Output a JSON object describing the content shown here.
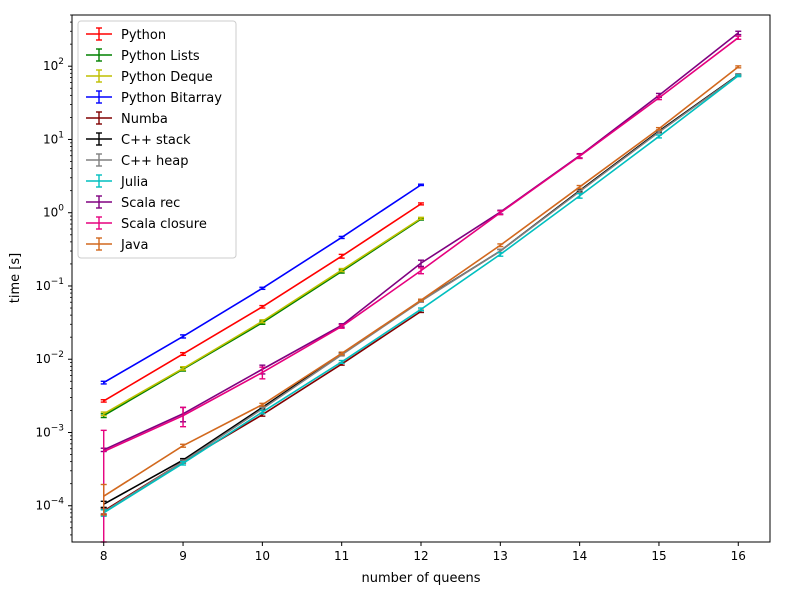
{
  "chart_data": {
    "type": "line",
    "title": "",
    "xlabel": "number of queens",
    "ylabel": "time [s]",
    "yscale": "log",
    "xlim": [
      7.6,
      16.4
    ],
    "ylim": [
      3.2e-05,
      500
    ],
    "x_ticks": [
      {
        "value": 8,
        "label": "8"
      },
      {
        "value": 9,
        "label": "9"
      },
      {
        "value": 10,
        "label": "10"
      },
      {
        "value": 11,
        "label": "11"
      },
      {
        "value": 12,
        "label": "12"
      },
      {
        "value": 13,
        "label": "13"
      },
      {
        "value": 14,
        "label": "14"
      },
      {
        "value": 15,
        "label": "15"
      },
      {
        "value": 16,
        "label": "16"
      }
    ],
    "y_ticks": [
      {
        "value": 0.0001,
        "base": "10",
        "exp": "−4"
      },
      {
        "value": 0.001,
        "base": "10",
        "exp": "−3"
      },
      {
        "value": 0.01,
        "base": "10",
        "exp": "−2"
      },
      {
        "value": 0.1,
        "base": "10",
        "exp": "−1"
      },
      {
        "value": 1,
        "base": "10",
        "exp": "0"
      },
      {
        "value": 10,
        "base": "10",
        "exp": "1"
      },
      {
        "value": 100,
        "base": "10",
        "exp": "2"
      }
    ],
    "grid": false,
    "legend_position": "top-left",
    "series": [
      {
        "name": "Python",
        "color": "#ff0000",
        "x": [
          8,
          9,
          10,
          11,
          12
        ],
        "y": [
          0.0027,
          0.0118,
          0.052,
          0.255,
          1.32
        ],
        "err": [
          0.0001,
          0.0005,
          0.002,
          0.015,
          0.04
        ]
      },
      {
        "name": "Python Lists",
        "color": "#008000",
        "x": [
          8,
          9,
          10,
          11,
          12
        ],
        "y": [
          0.0017,
          0.0073,
          0.0315,
          0.158,
          0.82
        ],
        "err": [
          0.0001,
          0.0004,
          0.0015,
          0.008,
          0.025
        ]
      },
      {
        "name": "Python Deque",
        "color": "#bfbf00",
        "x": [
          8,
          9,
          10,
          11,
          12
        ],
        "y": [
          0.0018,
          0.0075,
          0.033,
          0.165,
          0.84
        ],
        "err": [
          0.0001,
          0.0004,
          0.0015,
          0.008,
          0.025
        ]
      },
      {
        "name": "Python Bitarray",
        "color": "#0000ff",
        "x": [
          8,
          9,
          10,
          11,
          12
        ],
        "y": [
          0.0048,
          0.0205,
          0.093,
          0.46,
          2.4
        ],
        "err": [
          0.0002,
          0.001,
          0.003,
          0.015,
          0.05
        ]
      },
      {
        "name": "Numba",
        "color": "#800000",
        "x": [
          8,
          9,
          10,
          11,
          12
        ],
        "y": [
          8.5e-05,
          0.0004,
          0.00175,
          0.0086,
          0.045
        ],
        "err": [
          8e-06,
          2e-05,
          8e-05,
          0.0003,
          0.0015
        ]
      },
      {
        "name": "C++ stack",
        "color": "#000000",
        "x": [
          8,
          9,
          10,
          11,
          12,
          13,
          14,
          15,
          16
        ],
        "y": [
          0.000105,
          0.00042,
          0.0022,
          0.0118,
          0.063,
          0.3,
          2.0,
          13.0,
          76
        ],
        "err": [
          1e-05,
          2e-05,
          0.0001,
          0.0004,
          0.002,
          0.015,
          0.08,
          0.4,
          2
        ]
      },
      {
        "name": "C++ heap",
        "color": "#808080",
        "x": [
          8,
          9,
          10,
          11,
          12,
          13,
          14,
          15,
          16
        ],
        "y": [
          8.2e-05,
          0.0004,
          0.0021,
          0.0115,
          0.062,
          0.3,
          1.95,
          12.6,
          75
        ],
        "err": [
          8e-06,
          2e-05,
          0.0001,
          0.0004,
          0.002,
          0.015,
          0.08,
          0.4,
          2
        ]
      },
      {
        "name": "Julia",
        "color": "#00bfbf",
        "x": [
          8,
          9,
          10,
          11,
          12,
          13,
          14,
          15,
          16
        ],
        "y": [
          8e-05,
          0.00038,
          0.0019,
          0.0092,
          0.048,
          0.27,
          1.7,
          11.0,
          74
        ],
        "err": [
          8e-06,
          2e-05,
          0.0001,
          0.0004,
          0.002,
          0.015,
          0.12,
          0.5,
          2
        ]
      },
      {
        "name": "Scala rec",
        "color": "#800080",
        "x": [
          8,
          9,
          10,
          11,
          12,
          13,
          14,
          15,
          16
        ],
        "y": [
          0.00058,
          0.0018,
          0.0073,
          0.029,
          0.205,
          1.02,
          6.0,
          40,
          285
        ],
        "err": [
          3e-05,
          0.0004,
          0.001,
          0.0015,
          0.02,
          0.06,
          0.4,
          2.5,
          15
        ]
      },
      {
        "name": "Scala closure",
        "color": "#e6007e",
        "x": [
          8,
          9,
          10,
          11,
          12,
          13,
          14,
          15,
          16
        ],
        "y": [
          0.00055,
          0.0017,
          0.0066,
          0.028,
          0.162,
          1.0,
          5.9,
          37,
          245
        ],
        "err": [
          0.00052,
          0.0005,
          0.0012,
          0.0015,
          0.015,
          0.06,
          0.4,
          2,
          12
        ]
      },
      {
        "name": "Java",
        "color": "#d2691e",
        "x": [
          8,
          9,
          10,
          11,
          12,
          13,
          14,
          15,
          16
        ],
        "y": [
          0.000135,
          0.00066,
          0.0024,
          0.012,
          0.064,
          0.36,
          2.25,
          14.0,
          98
        ],
        "err": [
          6e-05,
          3e-05,
          0.0001,
          0.0005,
          0.002,
          0.015,
          0.1,
          0.5,
          3
        ]
      }
    ]
  }
}
